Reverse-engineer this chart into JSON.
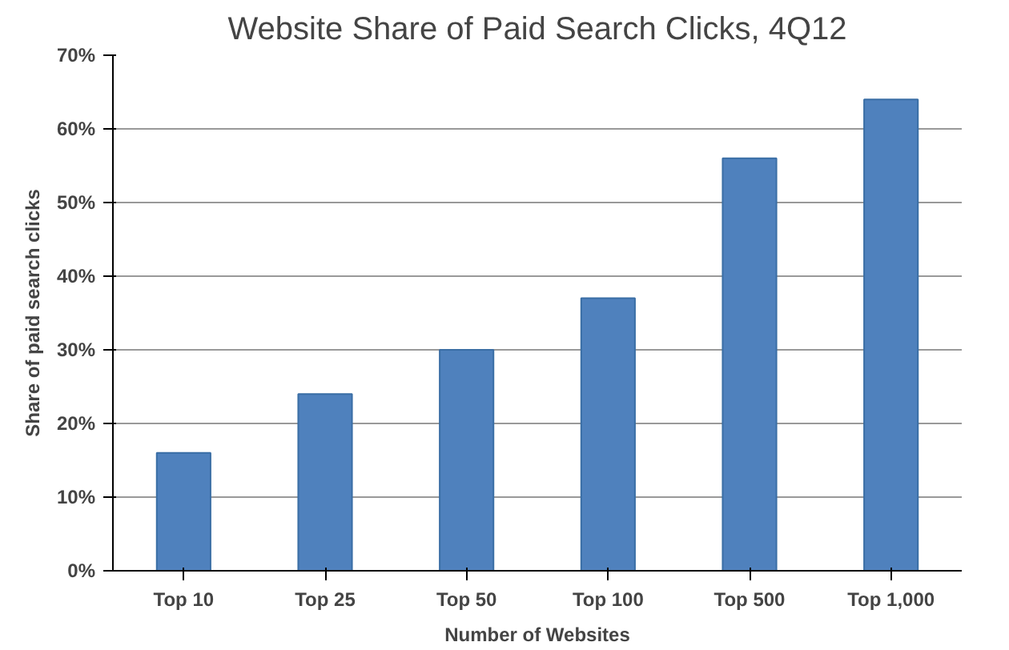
{
  "chart_data": {
    "type": "bar",
    "title": "Website Share of Paid Search Clicks, 4Q12",
    "xlabel": "Number of Websites",
    "ylabel": "Share of paid search clicks",
    "categories": [
      "Top 10",
      "Top 25",
      "Top 50",
      "Top 100",
      "Top 500",
      "Top 1,000"
    ],
    "values": [
      16,
      24,
      30,
      37,
      56,
      64
    ],
    "color": "#4f81bd",
    "ylim": [
      0,
      70
    ],
    "yticks": [
      {
        "value": 0,
        "label": "0%"
      },
      {
        "value": 10,
        "label": "10%"
      },
      {
        "value": 20,
        "label": "20%"
      },
      {
        "value": 30,
        "label": "30%"
      },
      {
        "value": 40,
        "label": "40%"
      },
      {
        "value": 50,
        "label": "50%"
      },
      {
        "value": 60,
        "label": "60%"
      },
      {
        "value": 70,
        "label": "70%"
      }
    ],
    "grid": "y"
  }
}
